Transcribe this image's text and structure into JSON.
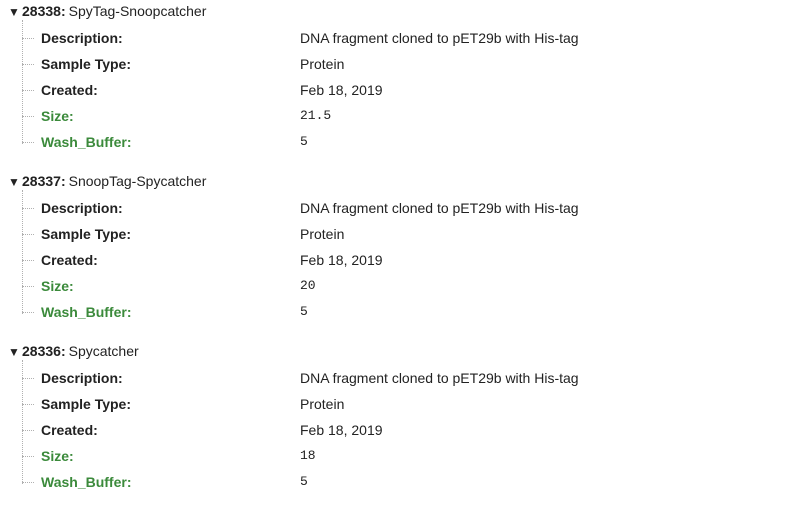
{
  "samples": [
    {
      "id": "28338",
      "name": "SpyTag-Snoopcatcher",
      "fields": [
        {
          "label": "Description:",
          "value": "DNA fragment cloned to pET29b with His-tag",
          "custom": false,
          "mono": false
        },
        {
          "label": "Sample Type:",
          "value": "Protein",
          "custom": false,
          "mono": false
        },
        {
          "label": "Created:",
          "value": "Feb 18, 2019",
          "custom": false,
          "mono": false
        },
        {
          "label": "Size:",
          "value": "21.5",
          "custom": true,
          "mono": true
        },
        {
          "label": "Wash_Buffer:",
          "value": "5",
          "custom": true,
          "mono": true
        }
      ]
    },
    {
      "id": "28337",
      "name": "SnoopTag-Spycatcher",
      "fields": [
        {
          "label": "Description:",
          "value": "DNA fragment cloned to pET29b with His-tag",
          "custom": false,
          "mono": false
        },
        {
          "label": "Sample Type:",
          "value": "Protein",
          "custom": false,
          "mono": false
        },
        {
          "label": "Created:",
          "value": "Feb 18, 2019",
          "custom": false,
          "mono": false
        },
        {
          "label": "Size:",
          "value": "20",
          "custom": true,
          "mono": true
        },
        {
          "label": "Wash_Buffer:",
          "value": "5",
          "custom": true,
          "mono": true
        }
      ]
    },
    {
      "id": "28336",
      "name": "Spycatcher",
      "fields": [
        {
          "label": "Description:",
          "value": "DNA fragment cloned to pET29b with His-tag",
          "custom": false,
          "mono": false
        },
        {
          "label": "Sample Type:",
          "value": "Protein",
          "custom": false,
          "mono": false
        },
        {
          "label": "Created:",
          "value": "Feb 18, 2019",
          "custom": false,
          "mono": false
        },
        {
          "label": "Size:",
          "value": "18",
          "custom": true,
          "mono": true
        },
        {
          "label": "Wash_Buffer:",
          "value": "5",
          "custom": true,
          "mono": true
        }
      ]
    }
  ],
  "ui": {
    "toggle_glyph": "▼",
    "id_suffix": ":",
    "custom_field_color": "#3b8a3b",
    "tree_line_color": "#b0b0b0"
  }
}
